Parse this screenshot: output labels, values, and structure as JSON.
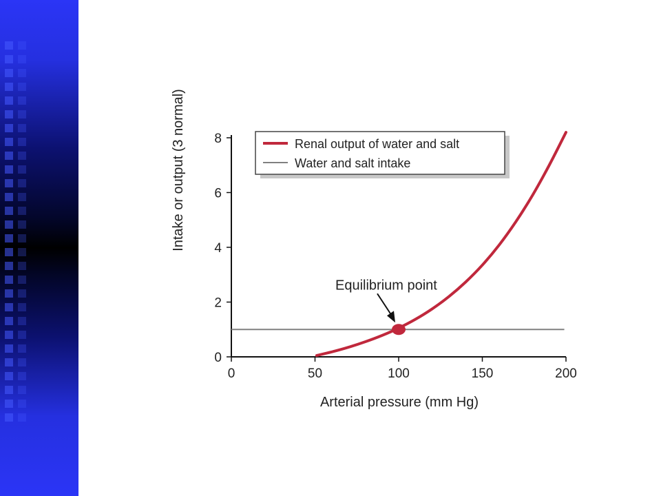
{
  "chart_data": {
    "type": "line",
    "xlabel": "Arterial pressure (mm Hg)",
    "ylabel": "Intake or output (3 normal)",
    "xlim": [
      0,
      200
    ],
    "ylim": [
      0,
      8
    ],
    "x_ticks": [
      "0",
      "50",
      "100",
      "150",
      "200"
    ],
    "y_ticks": [
      "0",
      "2",
      "4",
      "6",
      "8"
    ],
    "grid": false,
    "legend_position": "top-right",
    "series": [
      {
        "name": "Renal output of water and salt",
        "color": "#c0283c",
        "x": [
          51,
          60,
          70,
          80,
          90,
          100,
          110,
          120,
          130,
          140,
          150,
          160,
          170,
          180,
          190,
          200
        ],
        "y": [
          0.05,
          0.18,
          0.35,
          0.55,
          0.78,
          1.05,
          1.37,
          1.75,
          2.2,
          2.73,
          3.35,
          4.08,
          4.93,
          5.9,
          7.0,
          8.2
        ]
      },
      {
        "name": "Water and salt intake",
        "color": "#808080",
        "x": [
          0,
          199
        ],
        "y": [
          1.0,
          1.0
        ]
      }
    ],
    "annotations": [
      {
        "text": "Equilibrium point",
        "x": 100,
        "y": 1.0
      }
    ]
  },
  "colors": {
    "side_band_primary": "#2b35f6",
    "side_band_dark": "#000000",
    "equilibrium_marker": "#c0283c"
  }
}
